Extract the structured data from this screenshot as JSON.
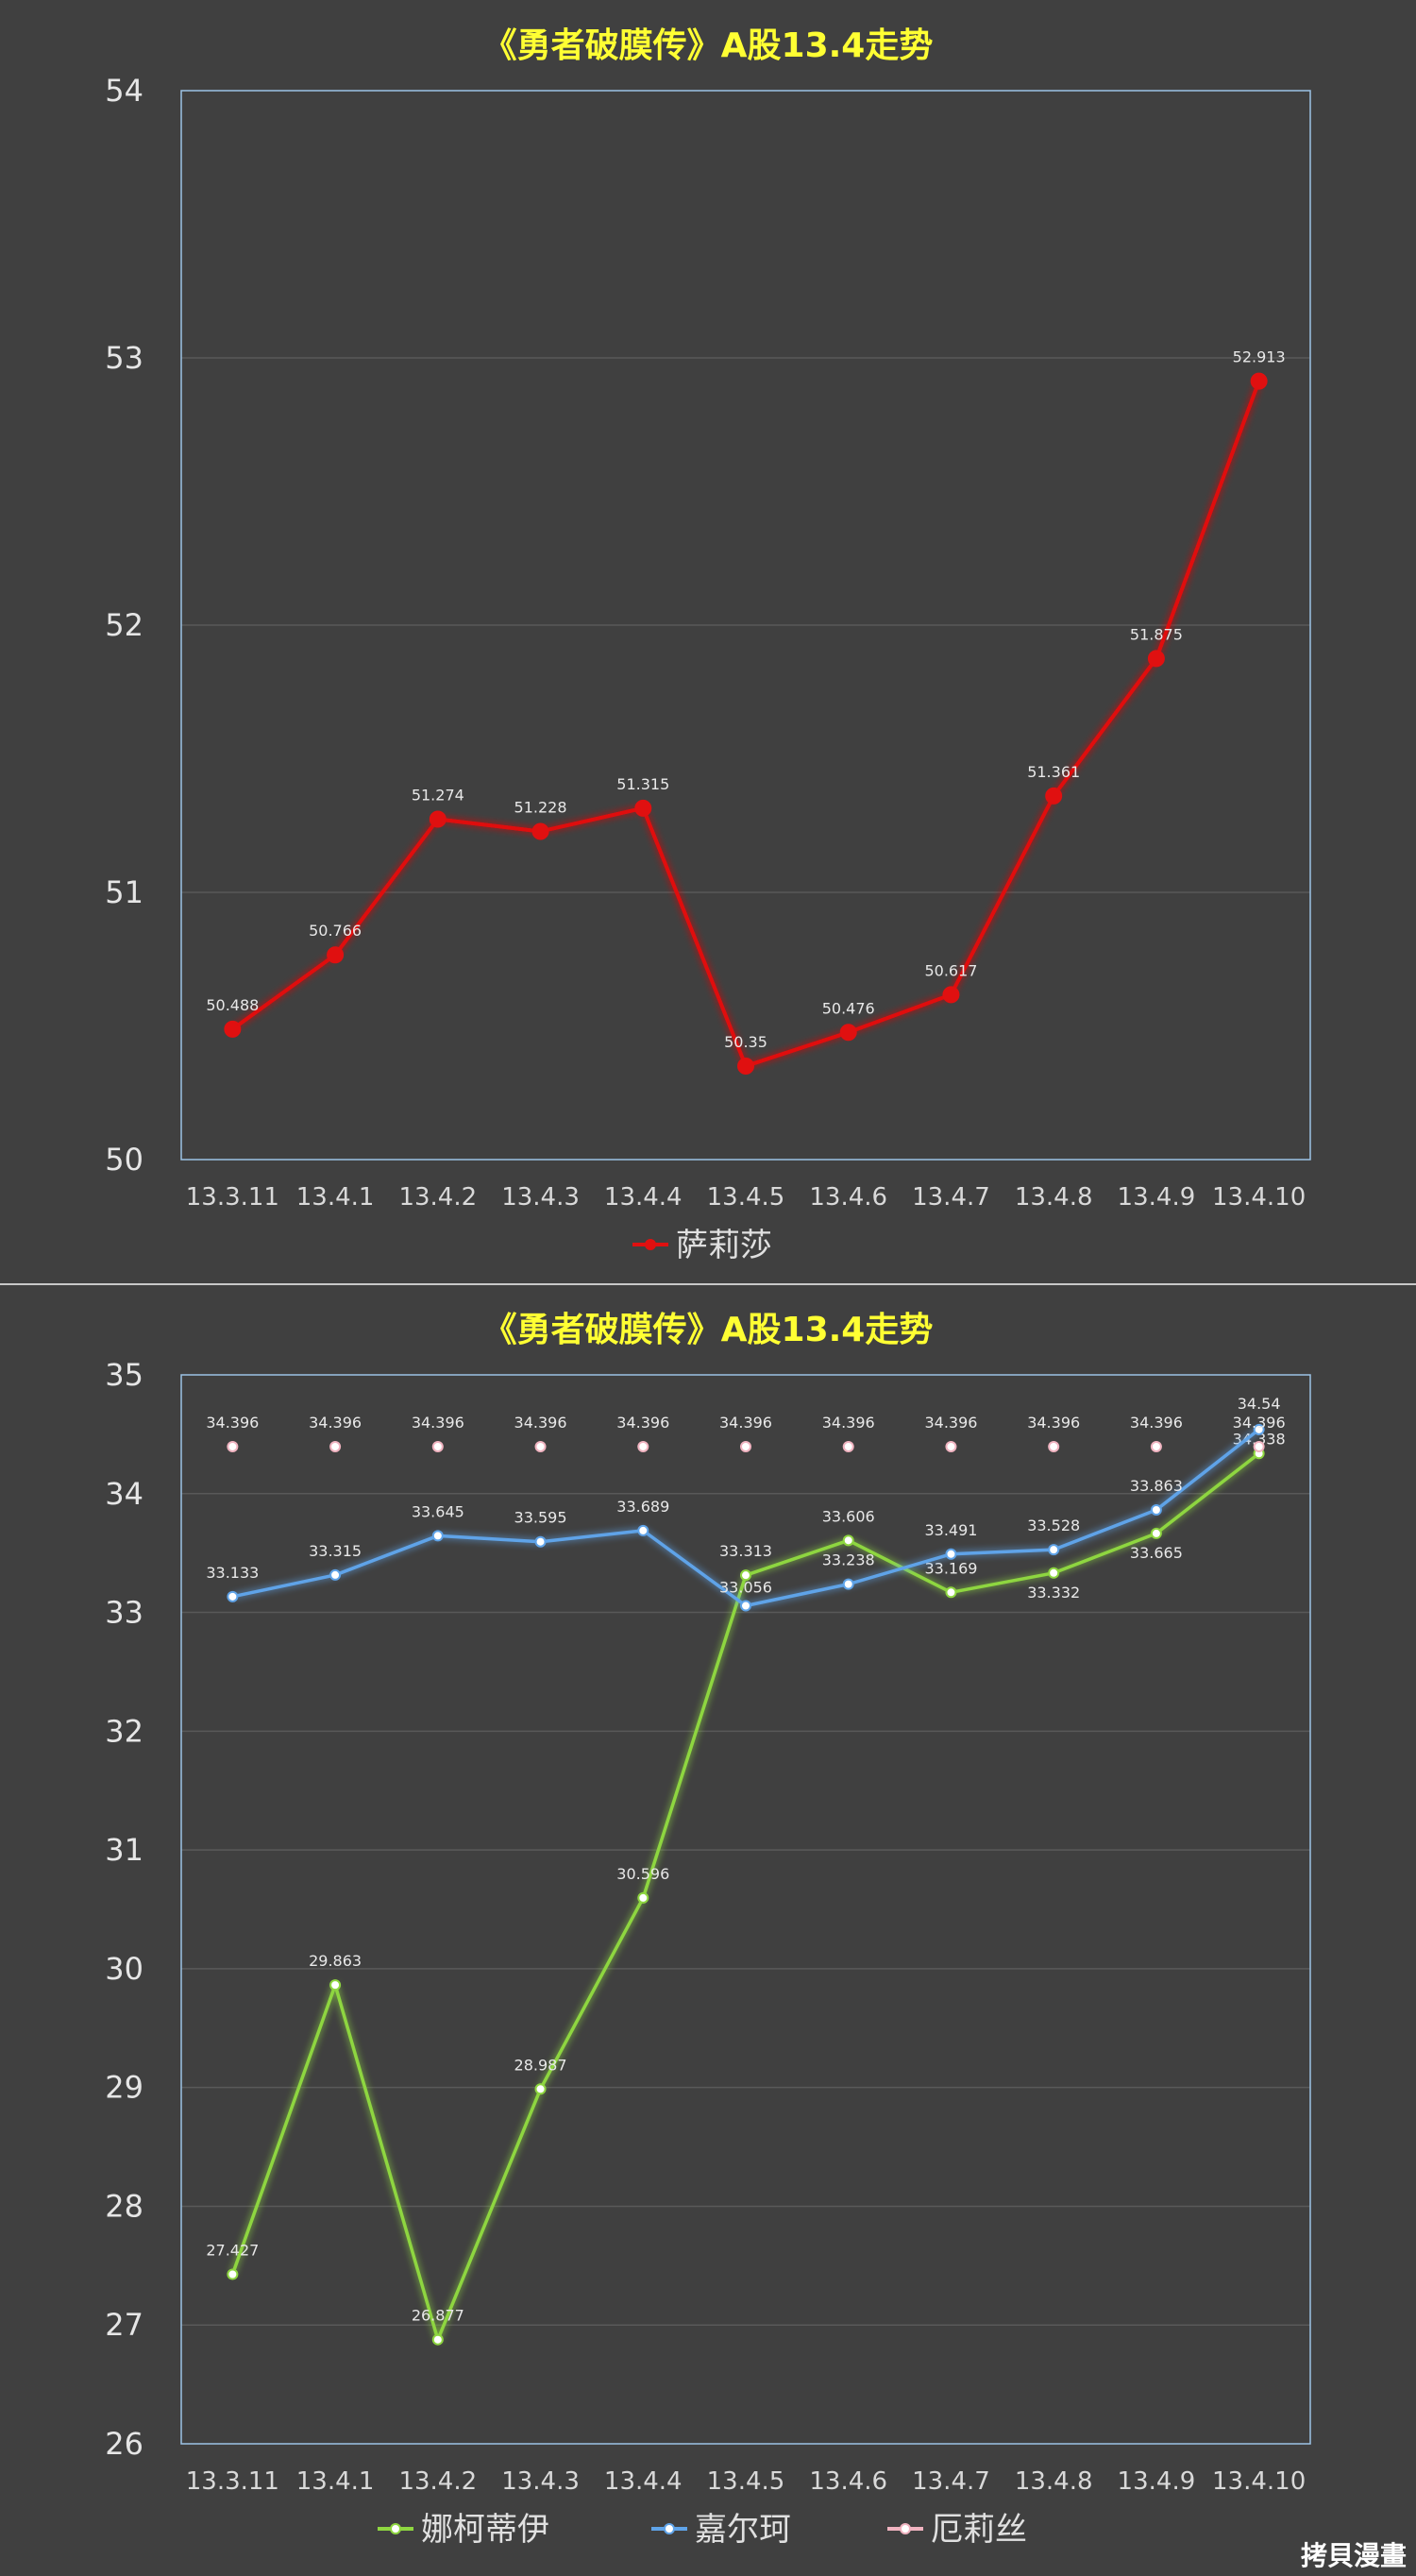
{
  "watermark": "拷貝漫畫",
  "chart_data": [
    {
      "type": "line",
      "title": "《勇者破膜传》A股13.4走势",
      "categories": [
        "13.3.11",
        "13.4.1",
        "13.4.2",
        "13.4.3",
        "13.4.4",
        "13.4.5",
        "13.4.6",
        "13.4.7",
        "13.4.8",
        "13.4.9",
        "13.4.10"
      ],
      "ylim": [
        50,
        54
      ],
      "yticks": [
        "50",
        "51",
        "52",
        "53",
        "54"
      ],
      "grid": true,
      "legend_position": "bottom",
      "series": [
        {
          "name": "萨莉莎",
          "color": "#e01010",
          "values": [
            50.488,
            50.766,
            51.274,
            51.228,
            51.315,
            50.35,
            50.476,
            50.617,
            51.361,
            51.875,
            52.913
          ],
          "labels": [
            "50.488",
            "50.766",
            "51.274",
            "51.228",
            "51.315",
            "50.35",
            "50.476",
            "50.617",
            "51.361",
            "51.875",
            "52.913"
          ]
        }
      ]
    },
    {
      "type": "line",
      "title": "《勇者破膜传》A股13.4走势",
      "categories": [
        "13.3.11",
        "13.4.1",
        "13.4.2",
        "13.4.3",
        "13.4.4",
        "13.4.5",
        "13.4.6",
        "13.4.7",
        "13.4.8",
        "13.4.9",
        "13.4.10"
      ],
      "ylim": [
        26,
        35
      ],
      "yticks": [
        "26",
        "27",
        "28",
        "29",
        "30",
        "31",
        "32",
        "33",
        "34",
        "35"
      ],
      "grid": true,
      "legend_position": "bottom",
      "series": [
        {
          "name": "娜柯蒂伊",
          "color": "#8ed640",
          "values": [
            27.427,
            29.863,
            26.877,
            28.987,
            30.596,
            33.313,
            33.606,
            33.169,
            33.332,
            33.665,
            34.338
          ],
          "labels": [
            "27.427",
            "29.863",
            "26.877",
            "28.987",
            "30.596",
            "33.313",
            "33.606",
            "33.169",
            "33.332",
            "33.665",
            "34.338"
          ]
        },
        {
          "name": "嘉尔珂",
          "color": "#5fa3e8",
          "values": [
            33.133,
            33.315,
            33.645,
            33.595,
            33.689,
            33.056,
            33.238,
            33.491,
            33.528,
            33.863,
            34.54
          ],
          "labels": [
            "33.133",
            "33.315",
            "33.645",
            "33.595",
            "33.689",
            "33.056",
            "33.238",
            "33.491",
            "33.528",
            "33.863",
            "34.54"
          ]
        },
        {
          "name": "厄莉丝",
          "color": "#f0b3c0",
          "values": [
            34.396,
            34.396,
            34.396,
            34.396,
            34.396,
            34.396,
            34.396,
            34.396,
            34.396,
            34.396,
            34.396
          ],
          "labels": [
            "34.396",
            "34.396",
            "34.396",
            "34.396",
            "34.396",
            "34.396",
            "34.396",
            "34.396",
            "34.396",
            "34.396",
            "34.396"
          ]
        }
      ]
    }
  ]
}
